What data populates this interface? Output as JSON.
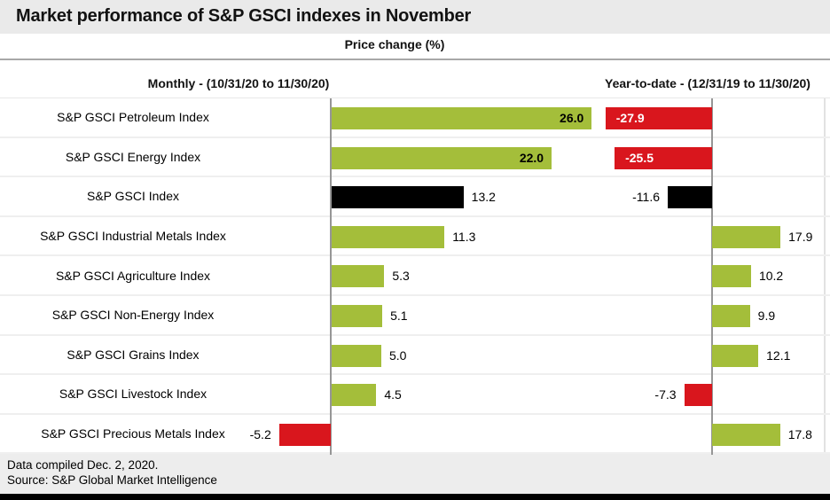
{
  "title": "Market performance of S&P GSCI indexes in November",
  "subtitle": "Price change (%)",
  "footer": {
    "line1": "Data compiled Dec. 2, 2020.",
    "line2": "Source: S&P Global Market Intelligence"
  },
  "colors": {
    "green": "#a4be3a",
    "red": "#d9161d",
    "black": "#000000",
    "axis_line": "#969696",
    "header_bg": "#eaeaea",
    "footer_bg": "#ededed"
  },
  "chart_data": {
    "type": "bar",
    "orientation": "horizontal",
    "grid": false,
    "panels": [
      {
        "name": "monthly",
        "header": "Monthly - (10/31/20 to 11/30/20)",
        "xlim": [
          -6,
          27.5
        ]
      },
      {
        "name": "ytd",
        "header": "Year-to-date - (12/31/19 to 11/30/20)",
        "xlim": [
          -30,
          30
        ]
      }
    ],
    "categories": [
      "S&P GSCI Petroleum Index",
      "S&P GSCI Energy Index",
      "S&P GSCI Index",
      "S&P GSCI Industrial Metals Index",
      "S&P GSCI Agriculture Index",
      "S&P GSCI Non-Energy Index",
      "S&P GSCI Grains Index",
      "S&P GSCI Livestock Index",
      "S&P GSCI Precious Metals Index"
    ],
    "series": [
      {
        "name": "Monthly - (10/31/20 to 11/30/20)",
        "values": [
          26.0,
          22.0,
          13.2,
          11.3,
          5.3,
          5.1,
          5.0,
          4.5,
          -5.2
        ],
        "colors": [
          "green",
          "green",
          "black",
          "green",
          "green",
          "green",
          "green",
          "green",
          "red"
        ],
        "label_placement": [
          "inside",
          "inside",
          "outside",
          "outside",
          "outside",
          "outside",
          "outside",
          "outside",
          "outside"
        ]
      },
      {
        "name": "Year-to-date - (12/31/19 to 11/30/20)",
        "values": [
          -27.9,
          -25.5,
          -11.6,
          17.9,
          10.2,
          9.9,
          12.1,
          -7.3,
          17.8
        ],
        "colors": [
          "red",
          "red",
          "black",
          "green",
          "green",
          "green",
          "green",
          "red",
          "green"
        ],
        "label_placement": [
          "inside",
          "inside",
          "outside",
          "outside",
          "outside",
          "outside",
          "outside",
          "outside",
          "outside"
        ]
      }
    ]
  }
}
